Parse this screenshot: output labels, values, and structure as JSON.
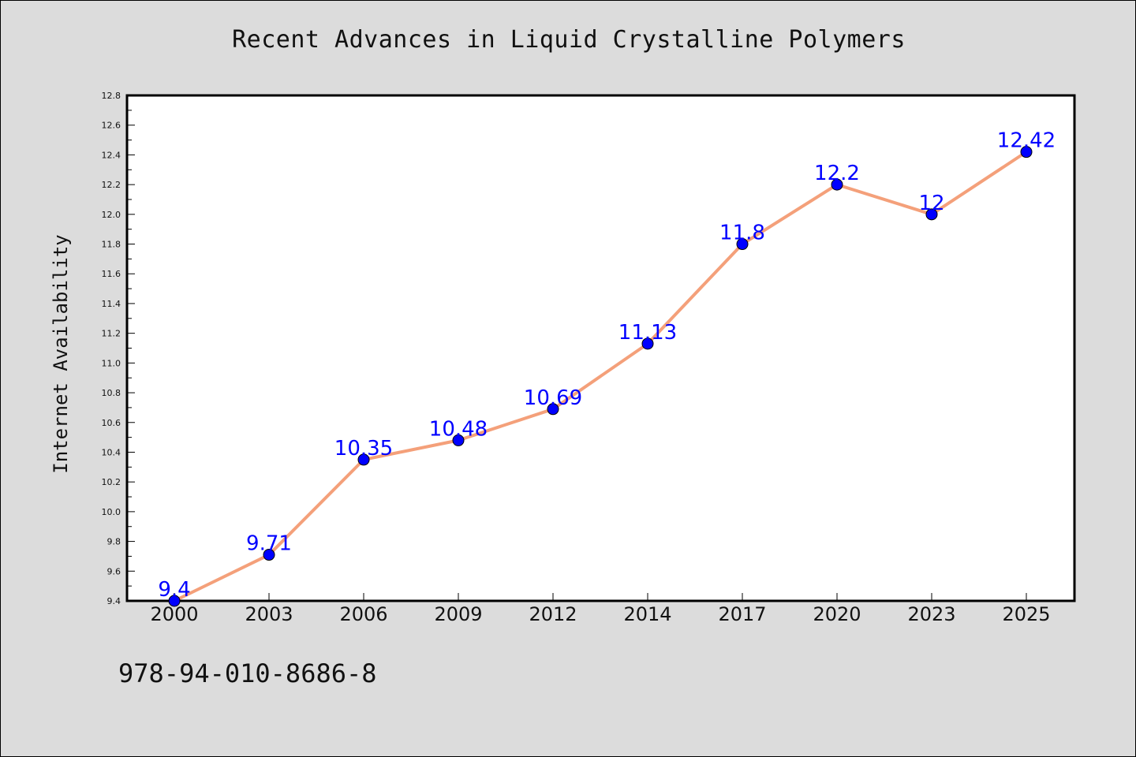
{
  "chart_data": {
    "type": "line",
    "title": "Recent Advances in Liquid Crystalline Polymers",
    "xlabel": "",
    "ylabel": "Internet Availability",
    "categories": [
      "2000",
      "2003",
      "2006",
      "2009",
      "2012",
      "2014",
      "2017",
      "2020",
      "2023",
      "2025"
    ],
    "series": [
      {
        "values": [
          9.4,
          9.71,
          10.35,
          10.48,
          10.69,
          11.13,
          11.8,
          12.2,
          12.0,
          12.42
        ],
        "data_labels": [
          "9.4",
          "9.71",
          "10.35",
          "10.48",
          "10.69",
          "11.13",
          "11.8",
          "12.2",
          "12",
          "12.42"
        ],
        "line_color": "#f4a07a",
        "marker_color": "#0000ff",
        "label_color": "#0000ff"
      }
    ],
    "ylim": [
      9.4,
      12.8
    ],
    "y_ticks": [
      "9.4",
      "9.6",
      "9.8",
      "10.0",
      "10.2",
      "10.4",
      "10.6",
      "10.8",
      "11.0",
      "11.2",
      "11.4",
      "11.6",
      "11.8",
      "12.0",
      "12.2",
      "12.4",
      "12.6",
      "12.8"
    ],
    "grid": false,
    "legend": "none"
  },
  "footer": {
    "code": "978-94-010-8686-8"
  },
  "colors": {
    "background": "#dcdcdc",
    "plot_background": "#ffffff"
  }
}
